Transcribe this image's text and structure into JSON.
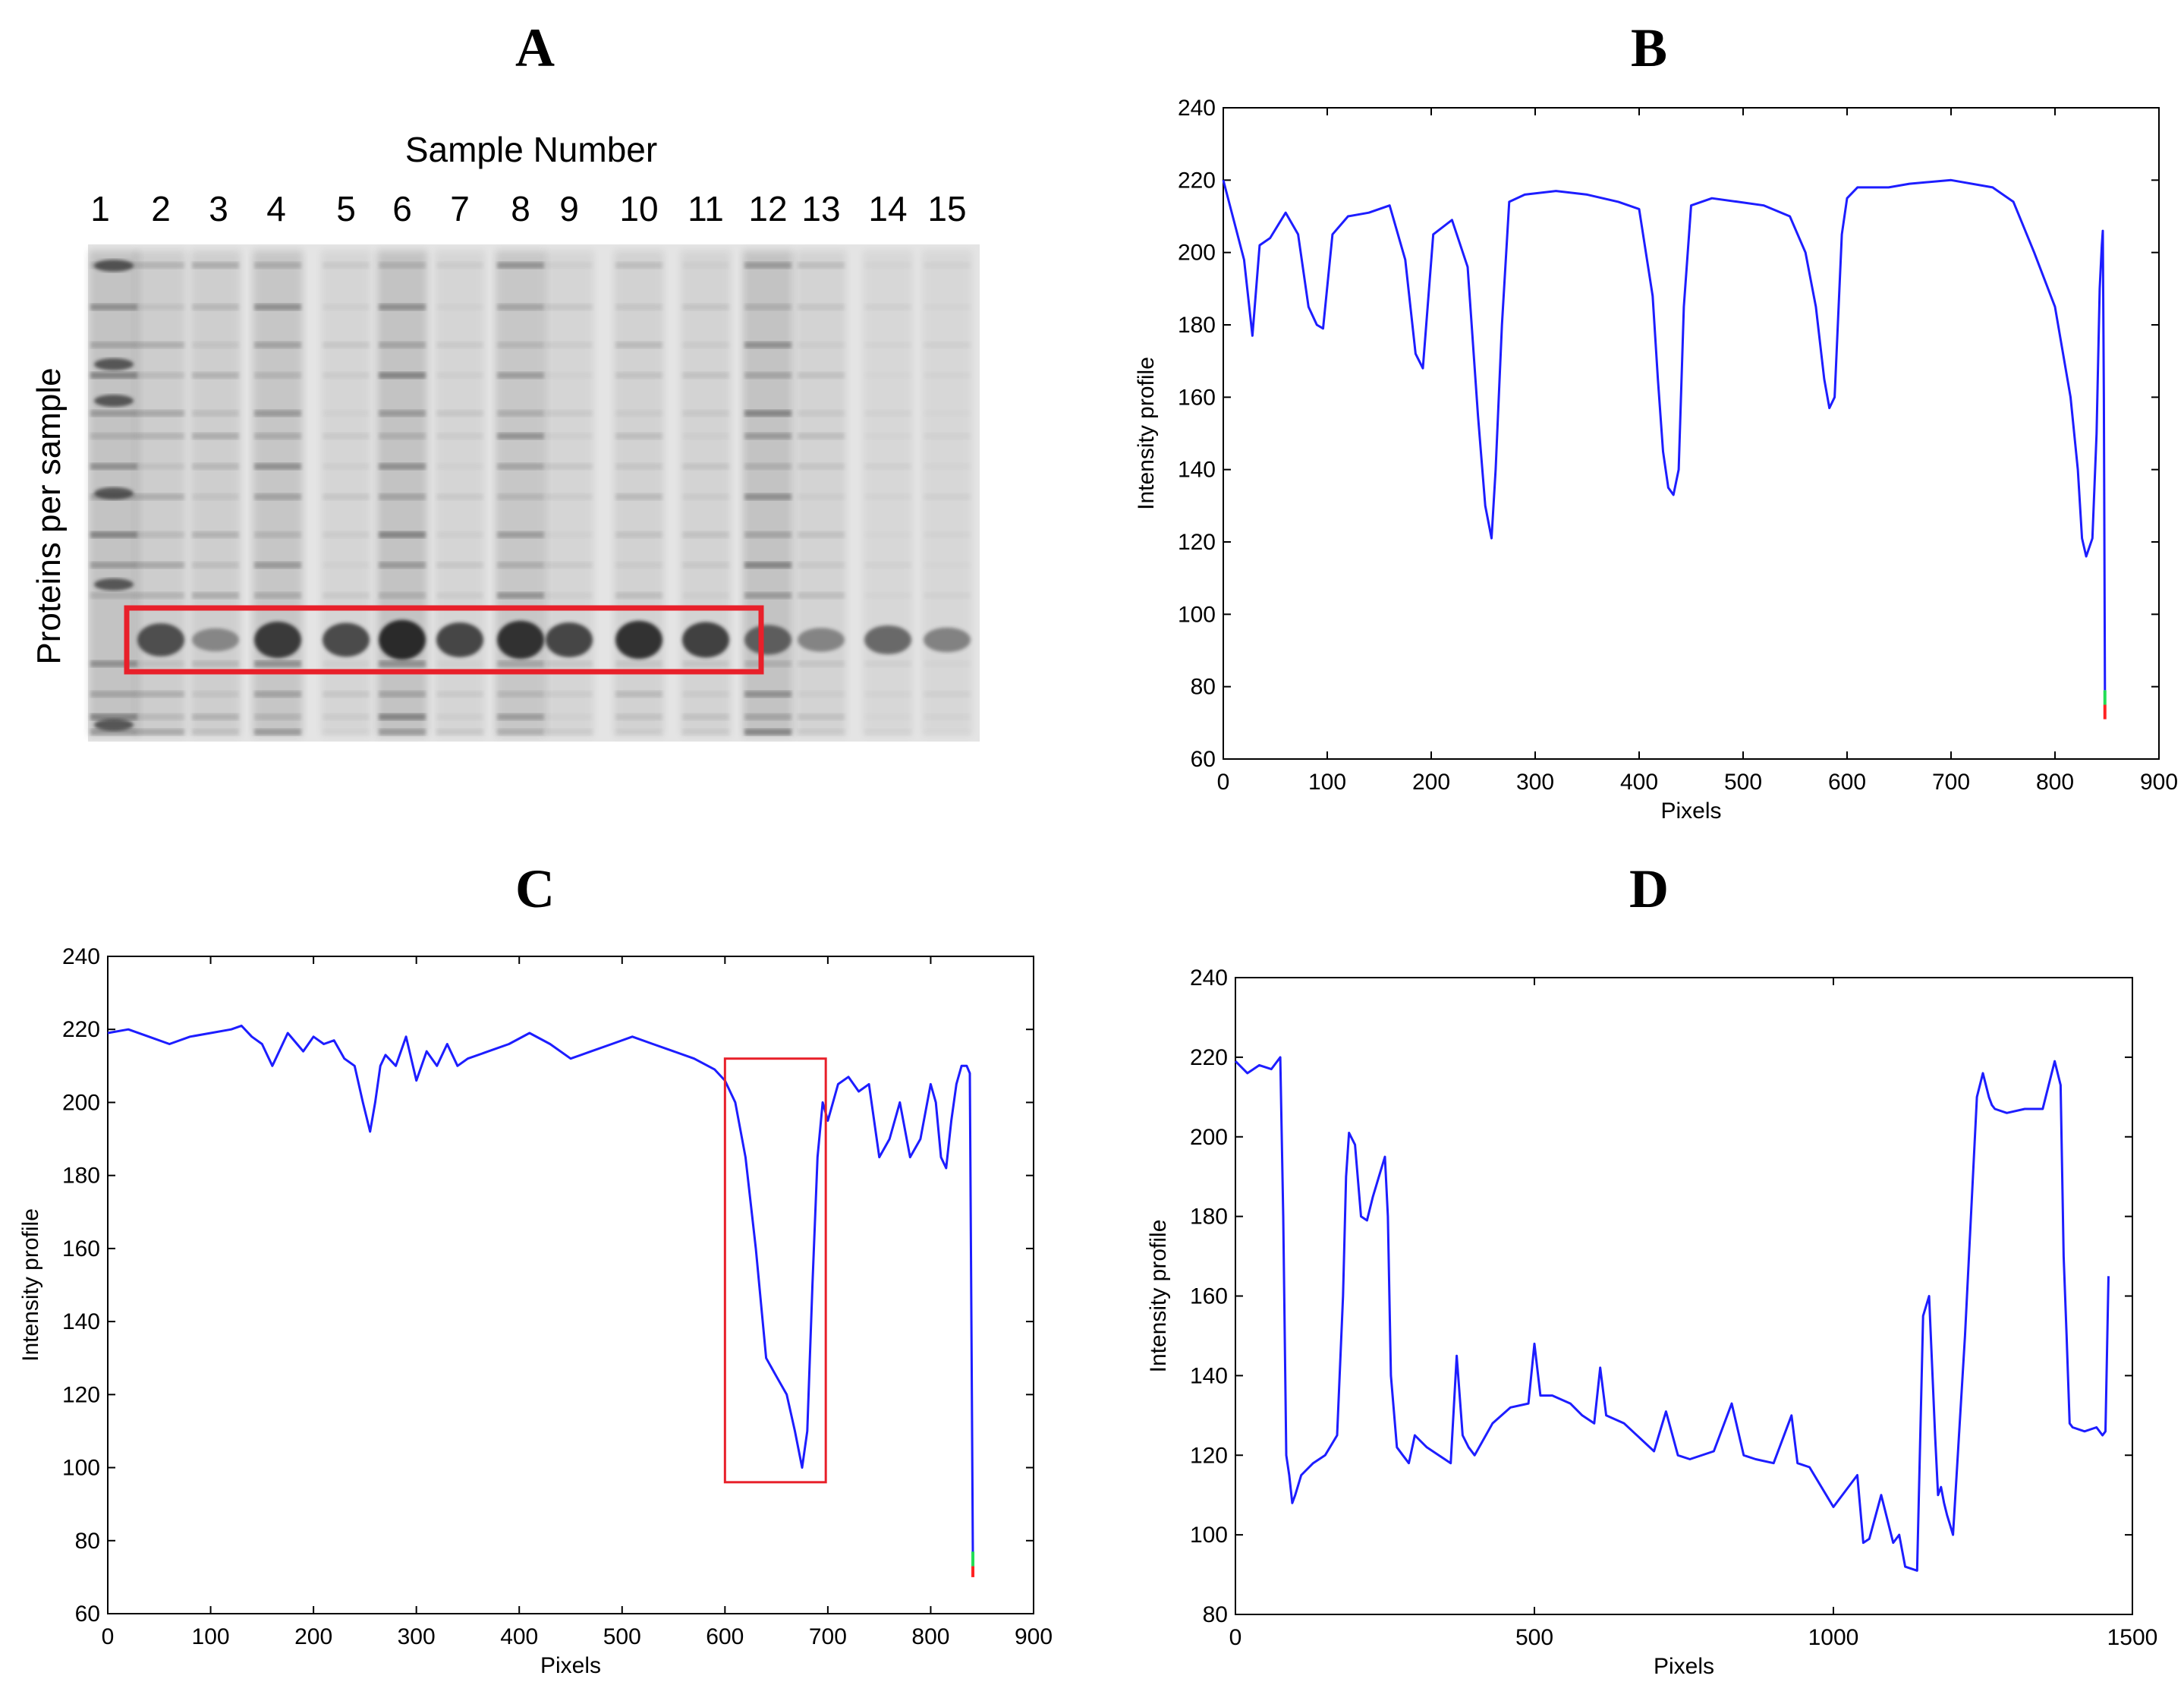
{
  "panels": {
    "a": "A",
    "b": "B",
    "c": "C",
    "d": "D"
  },
  "gel": {
    "title": "Sample Number",
    "ylabel": "Proteins per sample",
    "lanes": [
      "1",
      "2",
      "3",
      "4",
      "5",
      "6",
      "7",
      "8",
      "9",
      "10",
      "11",
      "12",
      "13",
      "14",
      "15"
    ],
    "highlight_color": "#e8202a"
  },
  "colors": {
    "line": "#1d1dff",
    "box": "#e8202a"
  },
  "chart_data": [
    {
      "id": "B",
      "type": "line",
      "xlabel": "Pixels",
      "ylabel": "Intensity profile",
      "xlim": [
        0,
        900
      ],
      "ylim": [
        60,
        240
      ],
      "xticks": [
        0,
        100,
        200,
        300,
        400,
        500,
        600,
        700,
        800,
        900
      ],
      "yticks": [
        60,
        80,
        100,
        120,
        140,
        160,
        180,
        200,
        220,
        240
      ],
      "series": [
        {
          "name": "profile",
          "x": [
            0,
            10,
            20,
            28,
            35,
            45,
            60,
            72,
            82,
            90,
            96,
            105,
            120,
            140,
            160,
            175,
            185,
            192,
            202,
            220,
            235,
            245,
            252,
            258,
            262,
            268,
            275,
            290,
            320,
            350,
            380,
            400,
            413,
            418,
            423,
            428,
            433,
            438,
            443,
            450,
            470,
            495,
            520,
            545,
            560,
            570,
            578,
            583,
            588,
            595,
            600,
            610,
            640,
            660,
            700,
            740,
            760,
            780,
            800,
            815,
            822,
            826,
            830,
            836,
            840,
            843,
            845,
            846,
            847,
            848
          ],
          "y": [
            220,
            209,
            198,
            177,
            202,
            204,
            211,
            205,
            185,
            180,
            179,
            205,
            210,
            211,
            213,
            198,
            172,
            168,
            205,
            209,
            196,
            155,
            130,
            121,
            140,
            180,
            214,
            216,
            217,
            216,
            214,
            212,
            188,
            165,
            145,
            135,
            133,
            140,
            185,
            213,
            215,
            214,
            213,
            210,
            200,
            185,
            165,
            157,
            160,
            205,
            215,
            218,
            218,
            219,
            220,
            218,
            214,
            200,
            185,
            160,
            140,
            121,
            116,
            121,
            150,
            190,
            202,
            206,
            160,
            79
          ]
        }
      ],
      "markers": [
        {
          "color": "#22dd55",
          "y_from": 75,
          "y_to": 79
        },
        {
          "color": "#ff2222",
          "y_from": 71,
          "y_to": 75
        }
      ]
    },
    {
      "id": "C",
      "type": "line",
      "xlabel": "Pixels",
      "ylabel": "Intensity profile",
      "xlim": [
        0,
        900
      ],
      "ylim": [
        60,
        240
      ],
      "xticks": [
        0,
        100,
        200,
        300,
        400,
        500,
        600,
        700,
        800,
        900
      ],
      "yticks": [
        60,
        80,
        100,
        120,
        140,
        160,
        180,
        200,
        220,
        240
      ],
      "series": [
        {
          "name": "profile",
          "x": [
            0,
            20,
            40,
            60,
            80,
            100,
            120,
            130,
            140,
            150,
            160,
            175,
            190,
            200,
            210,
            220,
            230,
            240,
            248,
            255,
            260,
            265,
            270,
            280,
            290,
            300,
            310,
            320,
            330,
            340,
            350,
            370,
            390,
            410,
            430,
            450,
            470,
            490,
            510,
            530,
            550,
            570,
            590,
            600,
            610,
            620,
            630,
            640,
            650,
            660,
            668,
            675,
            680,
            685,
            690,
            695,
            700,
            710,
            720,
            730,
            740,
            750,
            760,
            770,
            780,
            790,
            800,
            805,
            810,
            815,
            820,
            825,
            830,
            835,
            838,
            840,
            841
          ],
          "y": [
            219,
            220,
            218,
            216,
            218,
            219,
            220,
            221,
            218,
            216,
            210,
            219,
            214,
            218,
            216,
            217,
            212,
            210,
            200,
            192,
            200,
            210,
            213,
            210,
            218,
            206,
            214,
            210,
            216,
            210,
            212,
            214,
            216,
            219,
            216,
            212,
            214,
            216,
            218,
            216,
            214,
            212,
            209,
            206,
            200,
            185,
            160,
            130,
            125,
            120,
            110,
            100,
            110,
            150,
            185,
            200,
            195,
            205,
            207,
            203,
            205,
            185,
            190,
            200,
            185,
            190,
            205,
            200,
            185,
            182,
            195,
            205,
            210,
            210,
            208,
            120,
            76
          ]
        }
      ],
      "markers": [
        {
          "color": "#22dd55",
          "y_from": 73,
          "y_to": 77
        },
        {
          "color": "#ff2222",
          "y_from": 70,
          "y_to": 73
        }
      ],
      "highlight": {
        "x_from": 600,
        "x_to": 698,
        "y_from": 96,
        "y_to": 212
      }
    },
    {
      "id": "D",
      "type": "line",
      "xlabel": "Pixels",
      "ylabel": "Intensity profile",
      "xlim": [
        0,
        1500
      ],
      "ylim": [
        80,
        240
      ],
      "xticks": [
        0,
        500,
        1000,
        1500
      ],
      "yticks": [
        80,
        100,
        120,
        140,
        160,
        180,
        200,
        220,
        240
      ],
      "series": [
        {
          "name": "profile",
          "x": [
            0,
            20,
            40,
            60,
            75,
            80,
            85,
            90,
            95,
            100,
            110,
            130,
            150,
            170,
            180,
            185,
            190,
            200,
            210,
            220,
            230,
            240,
            250,
            255,
            260,
            270,
            280,
            290,
            300,
            320,
            340,
            360,
            370,
            380,
            390,
            400,
            430,
            460,
            490,
            500,
            510,
            530,
            560,
            580,
            600,
            610,
            620,
            650,
            700,
            720,
            740,
            760,
            800,
            830,
            850,
            870,
            900,
            930,
            940,
            960,
            1000,
            1040,
            1050,
            1060,
            1080,
            1100,
            1110,
            1120,
            1140,
            1150,
            1160,
            1170,
            1175,
            1180,
            1185,
            1190,
            1200,
            1220,
            1240,
            1250,
            1260,
            1265,
            1270,
            1290,
            1320,
            1350,
            1370,
            1380,
            1385,
            1390,
            1395,
            1400,
            1420,
            1440,
            1450,
            1455,
            1460
          ],
          "y": [
            219,
            216,
            218,
            217,
            220,
            180,
            120,
            115,
            108,
            110,
            115,
            118,
            120,
            125,
            160,
            190,
            201,
            198,
            180,
            179,
            185,
            190,
            195,
            180,
            140,
            122,
            120,
            118,
            125,
            122,
            120,
            118,
            145,
            125,
            122,
            120,
            128,
            132,
            133,
            148,
            135,
            135,
            133,
            130,
            128,
            142,
            130,
            128,
            121,
            131,
            120,
            119,
            121,
            133,
            120,
            119,
            118,
            130,
            118,
            117,
            107,
            115,
            98,
            99,
            110,
            98,
            100,
            92,
            91,
            155,
            160,
            125,
            110,
            112,
            108,
            105,
            100,
            150,
            210,
            216,
            210,
            208,
            207,
            206,
            207,
            207,
            219,
            213,
            170,
            150,
            128,
            127,
            126,
            127,
            125,
            126,
            165
          ]
        }
      ]
    }
  ]
}
